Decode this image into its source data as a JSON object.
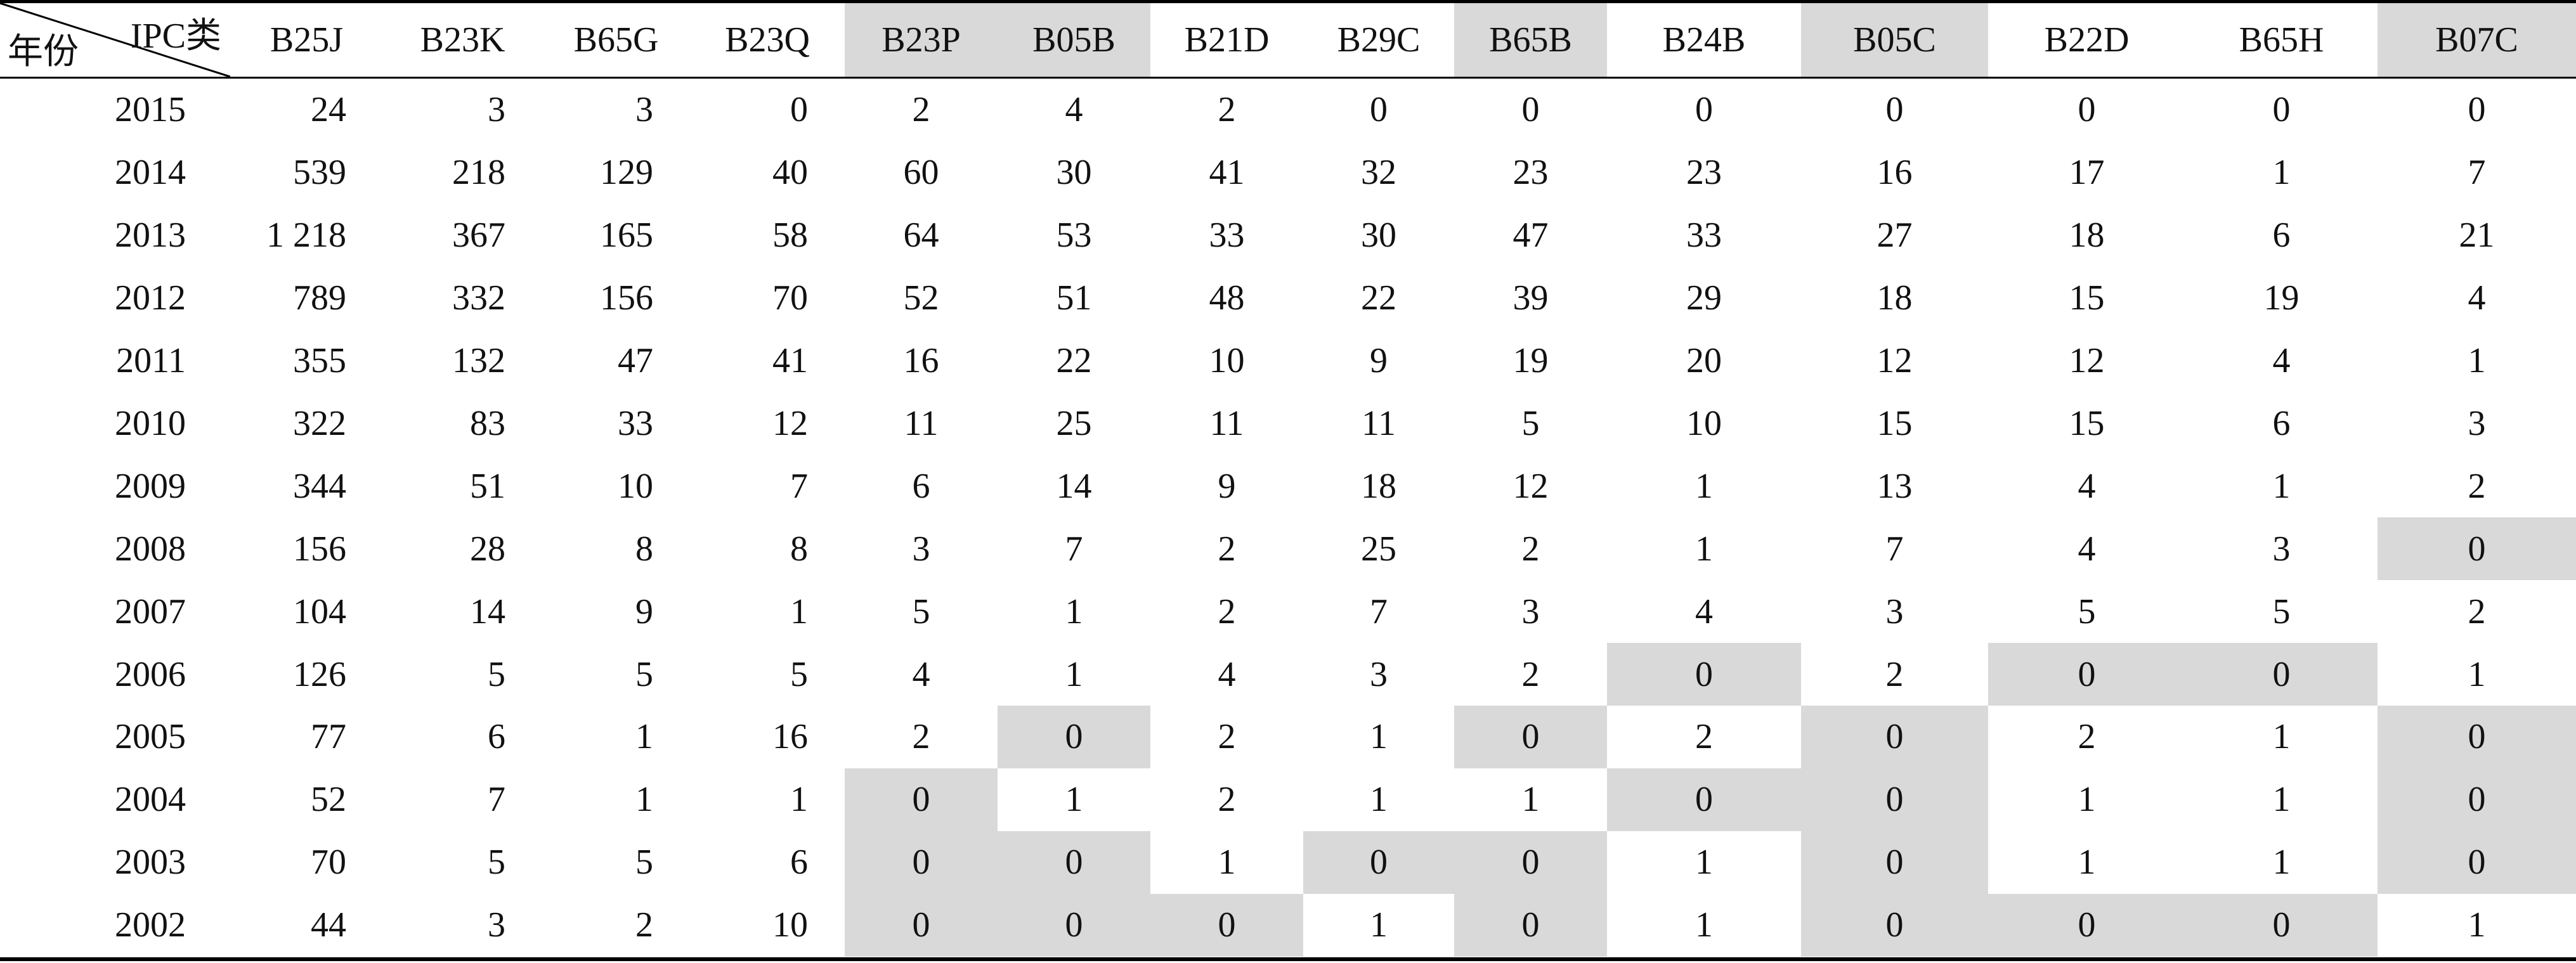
{
  "header": {
    "corner_top": "IPC类",
    "corner_bottom": "年份",
    "columns": [
      "B25J",
      "B23K",
      "B65G",
      "B23Q",
      "B23P",
      "B05B",
      "B21D",
      "B29C",
      "B65B",
      "B24B",
      "B05C",
      "B22D",
      "B65H",
      "B07C"
    ],
    "shaded": [
      false,
      false,
      false,
      false,
      true,
      true,
      false,
      false,
      true,
      false,
      true,
      false,
      false,
      true
    ]
  },
  "rows": [
    {
      "year": "2015",
      "values": [
        "24",
        "3",
        "3",
        "0",
        "2",
        "4",
        "2",
        "0",
        "0",
        "0",
        "0",
        "0",
        "0",
        "0"
      ],
      "shaded": [
        false,
        false,
        false,
        false,
        false,
        false,
        false,
        false,
        false,
        false,
        false,
        false,
        false,
        false
      ]
    },
    {
      "year": "2014",
      "values": [
        "539",
        "218",
        "129",
        "40",
        "60",
        "30",
        "41",
        "32",
        "23",
        "23",
        "16",
        "17",
        "1",
        "7"
      ],
      "shaded": [
        false,
        false,
        false,
        false,
        false,
        false,
        false,
        false,
        false,
        false,
        false,
        false,
        false,
        false
      ]
    },
    {
      "year": "2013",
      "values": [
        "1 218",
        "367",
        "165",
        "58",
        "64",
        "53",
        "33",
        "30",
        "47",
        "33",
        "27",
        "18",
        "6",
        "21"
      ],
      "shaded": [
        false,
        false,
        false,
        false,
        false,
        false,
        false,
        false,
        false,
        false,
        false,
        false,
        false,
        false
      ]
    },
    {
      "year": "2012",
      "values": [
        "789",
        "332",
        "156",
        "70",
        "52",
        "51",
        "48",
        "22",
        "39",
        "29",
        "18",
        "15",
        "19",
        "4"
      ],
      "shaded": [
        false,
        false,
        false,
        false,
        false,
        false,
        false,
        false,
        false,
        false,
        false,
        false,
        false,
        false
      ]
    },
    {
      "year": "2011",
      "values": [
        "355",
        "132",
        "47",
        "41",
        "16",
        "22",
        "10",
        "9",
        "19",
        "20",
        "12",
        "12",
        "4",
        "1"
      ],
      "shaded": [
        false,
        false,
        false,
        false,
        false,
        false,
        false,
        false,
        false,
        false,
        false,
        false,
        false,
        false
      ]
    },
    {
      "year": "2010",
      "values": [
        "322",
        "83",
        "33",
        "12",
        "11",
        "25",
        "11",
        "11",
        "5",
        "10",
        "15",
        "15",
        "6",
        "3"
      ],
      "shaded": [
        false,
        false,
        false,
        false,
        false,
        false,
        false,
        false,
        false,
        false,
        false,
        false,
        false,
        false
      ]
    },
    {
      "year": "2009",
      "values": [
        "344",
        "51",
        "10",
        "7",
        "6",
        "14",
        "9",
        "18",
        "12",
        "1",
        "13",
        "4",
        "1",
        "2"
      ],
      "shaded": [
        false,
        false,
        false,
        false,
        false,
        false,
        false,
        false,
        false,
        false,
        false,
        false,
        false,
        false
      ]
    },
    {
      "year": "2008",
      "values": [
        "156",
        "28",
        "8",
        "8",
        "3",
        "7",
        "2",
        "25",
        "2",
        "1",
        "7",
        "4",
        "3",
        "0"
      ],
      "shaded": [
        false,
        false,
        false,
        false,
        false,
        false,
        false,
        false,
        false,
        false,
        false,
        false,
        false,
        true
      ]
    },
    {
      "year": "2007",
      "values": [
        "104",
        "14",
        "9",
        "1",
        "5",
        "1",
        "2",
        "7",
        "3",
        "4",
        "3",
        "5",
        "5",
        "2"
      ],
      "shaded": [
        false,
        false,
        false,
        false,
        false,
        false,
        false,
        false,
        false,
        false,
        false,
        false,
        false,
        false
      ]
    },
    {
      "year": "2006",
      "values": [
        "126",
        "5",
        "5",
        "5",
        "4",
        "1",
        "4",
        "3",
        "2",
        "0",
        "2",
        "0",
        "0",
        "1"
      ],
      "shaded": [
        false,
        false,
        false,
        false,
        false,
        false,
        false,
        false,
        false,
        true,
        false,
        true,
        true,
        false
      ]
    },
    {
      "year": "2005",
      "values": [
        "77",
        "6",
        "1",
        "16",
        "2",
        "0",
        "2",
        "1",
        "0",
        "2",
        "0",
        "2",
        "1",
        "0"
      ],
      "shaded": [
        false,
        false,
        false,
        false,
        false,
        true,
        false,
        false,
        true,
        false,
        true,
        false,
        false,
        true
      ]
    },
    {
      "year": "2004",
      "values": [
        "52",
        "7",
        "1",
        "1",
        "0",
        "1",
        "2",
        "1",
        "1",
        "0",
        "0",
        "1",
        "1",
        "0"
      ],
      "shaded": [
        false,
        false,
        false,
        false,
        true,
        false,
        false,
        false,
        false,
        true,
        true,
        false,
        false,
        true
      ]
    },
    {
      "year": "2003",
      "values": [
        "70",
        "5",
        "5",
        "6",
        "0",
        "0",
        "1",
        "0",
        "0",
        "1",
        "0",
        "1",
        "1",
        "0"
      ],
      "shaded": [
        false,
        false,
        false,
        false,
        true,
        true,
        false,
        true,
        true,
        false,
        true,
        false,
        false,
        true
      ]
    },
    {
      "year": "2002",
      "values": [
        "44",
        "3",
        "2",
        "10",
        "0",
        "0",
        "0",
        "1",
        "0",
        "1",
        "0",
        "0",
        "0",
        "1"
      ],
      "shaded": [
        false,
        false,
        false,
        false,
        true,
        true,
        true,
        false,
        true,
        false,
        true,
        true,
        true,
        false
      ]
    }
  ]
}
